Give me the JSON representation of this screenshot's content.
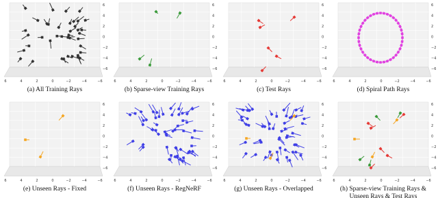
{
  "axis": {
    "bottom_ticks": [
      "6",
      "4",
      "2",
      "0",
      "−2",
      "−4",
      "−6"
    ],
    "side_ticks": [
      "6",
      "4",
      "2",
      "0",
      "−2",
      "−4",
      "−6"
    ]
  },
  "panels": [
    {
      "caption": [
        "(a) All Training Rays"
      ]
    },
    {
      "caption": [
        "(b) Sparse-view Training Rays"
      ]
    },
    {
      "caption": [
        "(c) Test Rays"
      ]
    },
    {
      "caption": [
        "(d) Spiral Path Rays"
      ]
    },
    {
      "caption": [
        "(e) Unseen Rays - Fixed"
      ]
    },
    {
      "caption": [
        "(f) Unseen Rays - RegNeRF"
      ]
    },
    {
      "caption": [
        "(g) Unseen Rays - Overlapped"
      ]
    },
    {
      "caption": [
        "(h) Sparse-view Training Rays &",
        "Unseen Rays & Test Rays"
      ]
    }
  ]
}
